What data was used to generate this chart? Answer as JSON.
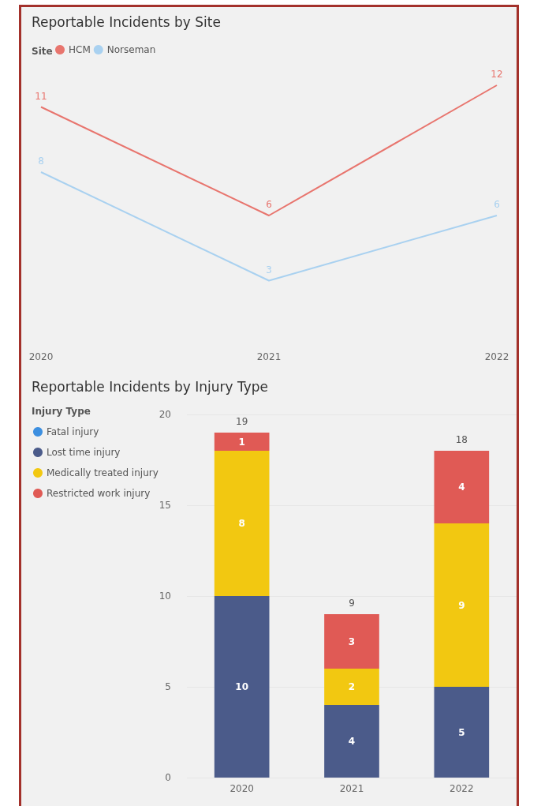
{
  "chart_data": [
    {
      "type": "line",
      "title": "Reportable Incidents by Site",
      "legend_title": "Site",
      "legend": "top left",
      "marker": "none",
      "data_labels": true,
      "grid": false,
      "tick_labels": "x",
      "categories": [
        "2020",
        "2021",
        "2022"
      ],
      "series": [
        {
          "name": "HCM",
          "color": "#e8756e",
          "values": [
            11,
            6,
            12
          ]
        },
        {
          "name": "Norseman",
          "color": "#a9d1f0",
          "values": [
            8,
            3,
            6
          ]
        }
      ]
    },
    {
      "type": "bar",
      "title": "Reportable Incidents by Injury Type",
      "legend_title": "Injury Type",
      "legend": "left",
      "stacked": true,
      "data_labels": true,
      "grid": "y",
      "categories": [
        "2020",
        "2021",
        "2022"
      ],
      "ylim": [
        0,
        20
      ],
      "yticks": [
        0,
        5,
        10,
        15,
        20
      ],
      "totals": [
        "19",
        "9",
        "18"
      ],
      "series": [
        {
          "name": "Fatal injury",
          "color": "#3d8fe0",
          "values": [
            null,
            null,
            null
          ]
        },
        {
          "name": "Lost time injury",
          "color": "#4b5b8a",
          "values": [
            10,
            4,
            5
          ]
        },
        {
          "name": "Medically treated injury",
          "color": "#f2c811",
          "values": [
            8,
            2,
            9
          ]
        },
        {
          "name": "Restricted work injury",
          "color": "#e05a55",
          "values": [
            1,
            3,
            4
          ]
        }
      ]
    }
  ]
}
